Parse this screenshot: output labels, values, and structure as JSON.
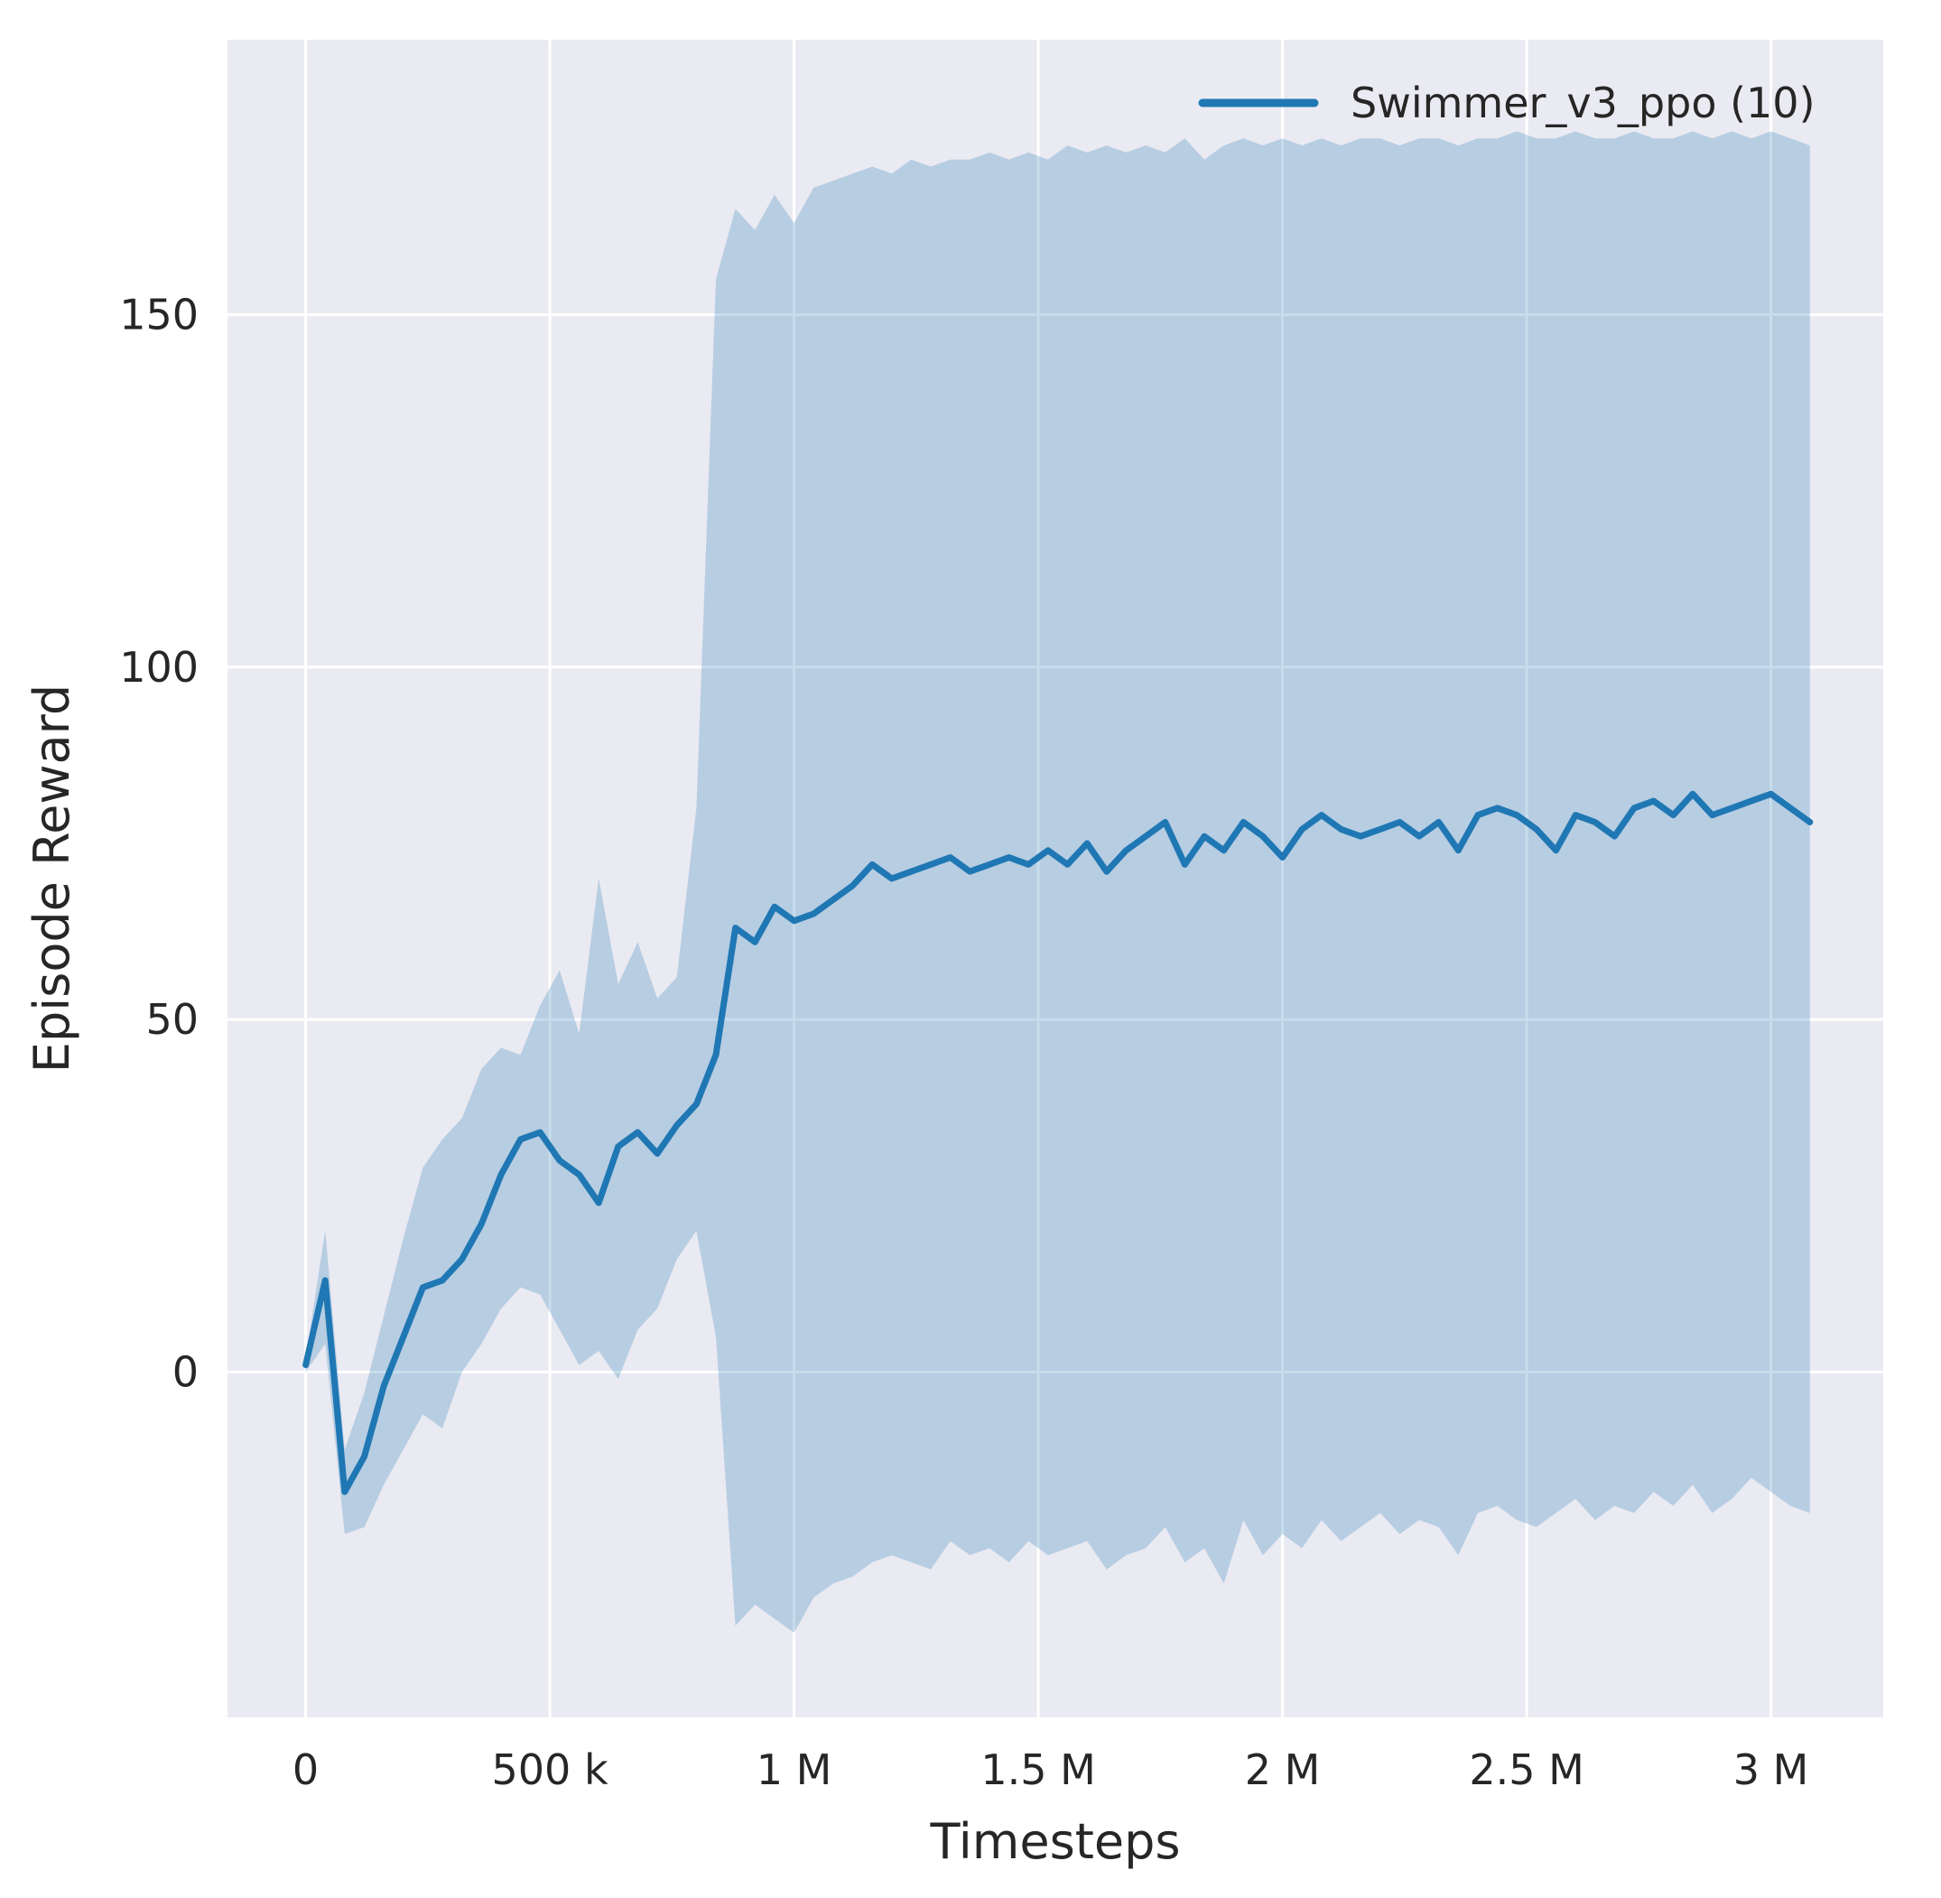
{
  "chart_data": {
    "type": "line",
    "title": "",
    "xlabel": "Timesteps",
    "ylabel": "Episode Reward",
    "grid": true,
    "legend_position": "upper right",
    "xlim": [
      -160000,
      3230000
    ],
    "ylim": [
      -49,
      189
    ],
    "x_ticks": {
      "values": [
        0,
        500000,
        1000000,
        1500000,
        2000000,
        2500000,
        3000000
      ],
      "labels": [
        "0",
        "500 k",
        "1 M",
        "1.5 M",
        "2 M",
        "2.5 M",
        "3 M"
      ]
    },
    "y_ticks": {
      "values": [
        0,
        50,
        100,
        150
      ],
      "labels": [
        "0",
        "50",
        "100",
        "150"
      ]
    },
    "x": [
      0,
      40000,
      80000,
      120000,
      160000,
      200000,
      240000,
      280000,
      320000,
      360000,
      400000,
      440000,
      480000,
      520000,
      560000,
      600000,
      640000,
      680000,
      720000,
      760000,
      800000,
      840000,
      880000,
      920000,
      960000,
      1000000,
      1040000,
      1080000,
      1120000,
      1160000,
      1200000,
      1240000,
      1280000,
      1320000,
      1360000,
      1400000,
      1440000,
      1480000,
      1520000,
      1560000,
      1600000,
      1640000,
      1680000,
      1720000,
      1760000,
      1800000,
      1840000,
      1880000,
      1920000,
      1960000,
      2000000,
      2040000,
      2080000,
      2120000,
      2160000,
      2200000,
      2240000,
      2280000,
      2320000,
      2360000,
      2400000,
      2440000,
      2480000,
      2520000,
      2560000,
      2600000,
      2640000,
      2680000,
      2720000,
      2760000,
      2800000,
      2840000,
      2880000,
      2920000,
      2960000,
      3000000,
      3040000,
      3080000
    ],
    "series": [
      {
        "name": "Swimmer_v3_ppo (10)",
        "color": "#1f77b4",
        "mean": [
          1,
          13,
          -17,
          -12,
          -2,
          5,
          12,
          13,
          16,
          21,
          28,
          33,
          34,
          30,
          28,
          24,
          32,
          34,
          31,
          35,
          38,
          45,
          63,
          61,
          66,
          64,
          65,
          67,
          69,
          72,
          70,
          71,
          72,
          73,
          71,
          72,
          73,
          72,
          74,
          72,
          75,
          71,
          74,
          76,
          78,
          72,
          76,
          74,
          78,
          76,
          73,
          77,
          79,
          77,
          76,
          77,
          78,
          76,
          78,
          74,
          79,
          80,
          79,
          77,
          74,
          79,
          78,
          76,
          80,
          81,
          79,
          82,
          79,
          80,
          81,
          82,
          80,
          78
        ],
        "band_lower": [
          0,
          4,
          -23,
          -22,
          -16,
          -11,
          -6,
          -8,
          0,
          4,
          9,
          12,
          11,
          6,
          1,
          3,
          -1,
          6,
          9,
          16,
          20,
          5,
          -36,
          -33,
          -35,
          -37,
          -32,
          -30,
          -29,
          -27,
          -26,
          -27,
          -28,
          -24,
          -26,
          -25,
          -27,
          -24,
          -26,
          -25,
          -24,
          -28,
          -26,
          -25,
          -22,
          -27,
          -25,
          -30,
          -21,
          -26,
          -23,
          -25,
          -21,
          -24,
          -22,
          -20,
          -23,
          -21,
          -22,
          -26,
          -20,
          -19,
          -21,
          -22,
          -20,
          -18,
          -21,
          -19,
          -20,
          -17,
          -19,
          -16,
          -20,
          -18,
          -15,
          -17,
          -19,
          -20
        ],
        "band_upper": [
          2,
          20,
          -11,
          -3,
          8,
          19,
          29,
          33,
          36,
          43,
          46,
          45,
          52,
          57,
          48,
          70,
          55,
          61,
          53,
          56,
          80,
          155,
          165,
          162,
          167,
          163,
          168,
          169,
          170,
          171,
          170,
          172,
          171,
          172,
          172,
          173,
          172,
          173,
          172,
          174,
          173,
          174,
          173,
          174,
          173,
          175,
          172,
          174,
          175,
          174,
          175,
          174,
          175,
          174,
          175,
          175,
          174,
          175,
          175,
          174,
          175,
          175,
          176,
          175,
          175,
          176,
          175,
          175,
          176,
          175,
          175,
          176,
          175,
          176,
          175,
          176,
          175,
          174
        ]
      }
    ],
    "colors": {
      "plot_background": "#eaeaf2",
      "grid": "#ffffff",
      "line": "#1f77b4",
      "band": "#1f77b4",
      "band_opacity": 0.25,
      "text": "#262626"
    }
  }
}
